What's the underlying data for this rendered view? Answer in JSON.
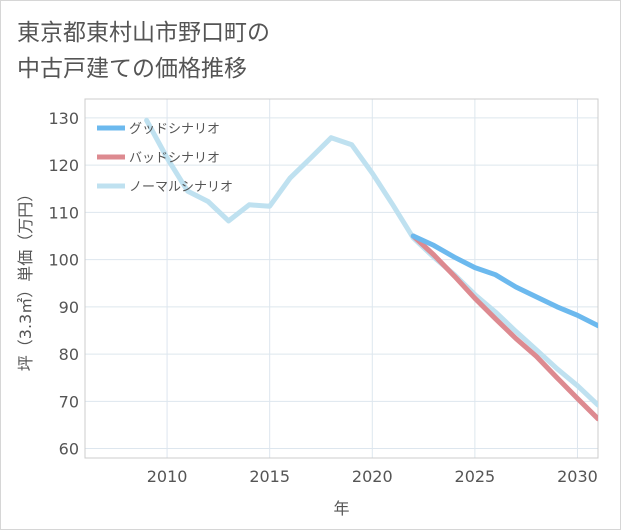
{
  "chart_data": {
    "type": "line",
    "title_line1": "東京都東村山市野口町の",
    "title_line2": "中古戸建ての価格推移",
    "xlabel": "年",
    "ylabel": "坪（3.3㎡）単価（万円）",
    "xlim": [
      2006,
      2031
    ],
    "ylim": [
      58,
      134
    ],
    "xticks": [
      2010,
      2015,
      2020,
      2025,
      2030
    ],
    "yticks": [
      60,
      70,
      80,
      90,
      100,
      110,
      120,
      130
    ],
    "grid": true,
    "legend_position": "top-left",
    "series": [
      {
        "name": "グッドシナリオ",
        "color": "#6cb9ee",
        "x": [
          2022,
          2023,
          2024,
          2025,
          2026,
          2027,
          2028,
          2029,
          2030,
          2031
        ],
        "y": [
          105,
          103,
          100.5,
          98.3,
          96.8,
          94.2,
          92.1,
          90,
          88.2,
          86
        ]
      },
      {
        "name": "バッドシナリオ",
        "color": "#dd8a90",
        "x": [
          2022,
          2023,
          2024,
          2025,
          2026,
          2027,
          2028,
          2029,
          2030,
          2031
        ],
        "y": [
          105,
          101,
          96.5,
          91.8,
          87.5,
          83.3,
          79.5,
          75,
          70.6,
          66.3
        ]
      },
      {
        "name": "ノーマルシナリオ",
        "color": "#bfe1f0",
        "x": [
          2009,
          2010,
          2011,
          2012,
          2013,
          2014,
          2015,
          2016,
          2017,
          2018,
          2019,
          2020,
          2021,
          2022,
          2023,
          2024,
          2025,
          2026,
          2027,
          2028,
          2029,
          2030,
          2031
        ],
        "y": [
          129.5,
          121.5,
          114.5,
          112.3,
          108.2,
          111.6,
          111.3,
          117.3,
          121.5,
          125.8,
          124.3,
          118.3,
          111.6,
          104.6,
          100.5,
          96.8,
          92.6,
          88.9,
          84.8,
          80.9,
          76.9,
          73.3,
          69.2
        ]
      }
    ]
  }
}
